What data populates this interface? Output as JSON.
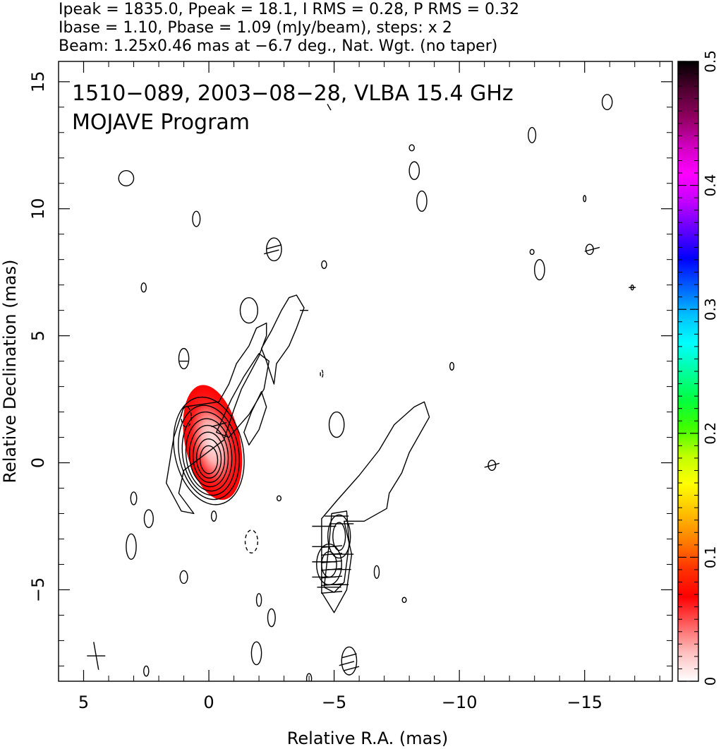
{
  "header": {
    "line1": "Ipeak = 1835.0, Ppeak = 18.1, I RMS = 0.28, P RMS = 0.32",
    "line2": "Ibase = 1.10, Pbase = 1.09 (mJy/beam), steps: x 2",
    "line3": "Beam: 1.25x0.46 mas at −6.7 deg., Nat. Wgt. (no taper)"
  },
  "chart_data": {
    "type": "contour",
    "title": "1510−089, 2003−08−28, VLBA 15.4 GHz",
    "subtitle": "MOJAVE Program",
    "xlabel": "Relative R.A. (mas)",
    "ylabel": "Relative Declination (mas)",
    "xlim": [
      6,
      -18.5
    ],
    "ylim": [
      -8.6,
      15.8
    ],
    "xticks": [
      5,
      0,
      -5,
      -10,
      -15
    ],
    "xtick_labels": [
      "5",
      "0",
      "−5",
      "−10",
      "−15"
    ],
    "yticks": [
      -5,
      0,
      5,
      10,
      15
    ],
    "ytick_labels": [
      "−5",
      "0",
      "5",
      "10",
      "15"
    ],
    "colorbar": {
      "range": [
        0,
        0.5
      ],
      "ticks": [
        0,
        0.1,
        0.2,
        0.3,
        0.4,
        0.5
      ],
      "tick_labels": [
        "0",
        "0.1",
        "0.2",
        "0.3",
        "0.4",
        "0.5"
      ]
    },
    "core": {
      "x": 0.0,
      "y": 0.2,
      "levels": [
        [
          0.5,
          1.0,
          -2
        ],
        [
          0.7,
          1.4,
          -2
        ],
        [
          0.9,
          1.8,
          -3
        ],
        [
          1.1,
          2.2,
          -4
        ],
        [
          1.3,
          2.6,
          -6
        ],
        [
          1.5,
          3.0,
          -8
        ],
        [
          1.7,
          3.4,
          -10
        ],
        [
          1.95,
          3.9,
          -12
        ]
      ]
    },
    "islands": [
      {
        "x": 3.3,
        "y": 11.2,
        "rx": 0.3,
        "ry": 0.3
      },
      {
        "x": 0.5,
        "y": 9.6,
        "rx": 0.15,
        "ry": 0.3
      },
      {
        "x": -2.6,
        "y": 8.4,
        "rx": 0.3,
        "ry": 0.45
      },
      {
        "x": -4.6,
        "y": 7.8,
        "rx": 0.1,
        "ry": 0.15
      },
      {
        "x": -8.1,
        "y": 12.4,
        "rx": 0.1,
        "ry": 0.12
      },
      {
        "x": -8.2,
        "y": 11.5,
        "rx": 0.2,
        "ry": 0.35
      },
      {
        "x": -8.5,
        "y": 10.3,
        "rx": 0.2,
        "ry": 0.4
      },
      {
        "x": -12.9,
        "y": 12.9,
        "rx": 0.15,
        "ry": 0.3
      },
      {
        "x": -12.9,
        "y": 8.3,
        "rx": 0.08,
        "ry": 0.1
      },
      {
        "x": -13.2,
        "y": 7.6,
        "rx": 0.2,
        "ry": 0.4
      },
      {
        "x": -15.2,
        "y": 8.4,
        "rx": 0.15,
        "ry": 0.2
      },
      {
        "x": -15.9,
        "y": 14.2,
        "rx": 0.2,
        "ry": 0.3
      },
      {
        "x": -15.0,
        "y": 10.4,
        "rx": 0.05,
        "ry": 0.12
      },
      {
        "x": -1.6,
        "y": 6.0,
        "rx": 0.35,
        "ry": 0.5
      },
      {
        "x": 1.0,
        "y": 4.1,
        "rx": 0.2,
        "ry": 0.4
      },
      {
        "x": -5.1,
        "y": 1.5,
        "rx": 0.3,
        "ry": 0.5
      },
      {
        "x": -9.7,
        "y": 3.8,
        "rx": 0.08,
        "ry": 0.15
      },
      {
        "x": -11.3,
        "y": -0.1,
        "rx": 0.15,
        "ry": 0.2
      },
      {
        "x": 3.0,
        "y": -1.4,
        "rx": 0.12,
        "ry": 0.25
      },
      {
        "x": 2.4,
        "y": -2.2,
        "rx": 0.18,
        "ry": 0.35
      },
      {
        "x": 3.1,
        "y": -3.3,
        "rx": 0.2,
        "ry": 0.5
      },
      {
        "x": 1.0,
        "y": -4.5,
        "rx": 0.15,
        "ry": 0.25
      },
      {
        "x": -0.2,
        "y": -2.1,
        "rx": 0.1,
        "ry": 0.2
      },
      {
        "x": -2.8,
        "y": -1.4,
        "rx": 0.08,
        "ry": 0.1
      },
      {
        "x": -2.0,
        "y": -5.4,
        "rx": 0.1,
        "ry": 0.25
      },
      {
        "x": -2.5,
        "y": -6.1,
        "rx": 0.15,
        "ry": 0.35
      },
      {
        "x": -1.9,
        "y": -7.5,
        "rx": 0.2,
        "ry": 0.45
      },
      {
        "x": -6.7,
        "y": -4.3,
        "rx": 0.1,
        "ry": 0.25
      },
      {
        "x": -7.8,
        "y": -5.4,
        "rx": 0.08,
        "ry": 0.1
      },
      {
        "x": -5.6,
        "y": -7.8,
        "rx": 0.3,
        "ry": 0.55
      },
      {
        "x": 2.5,
        "y": -8.2,
        "rx": 0.1,
        "ry": 0.2
      },
      {
        "x": -4.0,
        "y": -8.5,
        "rx": 0.1,
        "ry": 0.2
      },
      {
        "x": 2.6,
        "y": 6.9,
        "rx": 0.1,
        "ry": 0.18
      },
      {
        "x": -16.9,
        "y": 6.9,
        "rx": 0.05,
        "ry": 0.1
      }
    ],
    "dashed_islands": [
      {
        "x": 0.9,
        "y": 1.8,
        "rx": 0.2,
        "ry": 0.4
      },
      {
        "x": -1.7,
        "y": -3.1,
        "rx": 0.25,
        "ry": 0.45
      },
      {
        "x": -4.5,
        "y": 3.5,
        "rx": 0.05,
        "ry": 0.15
      }
    ],
    "jet_outer": [
      [
        0.6,
        -2.0
      ],
      [
        1.2,
        -1.2
      ],
      [
        1.0,
        -0.3
      ],
      [
        -0.6,
        0.9
      ],
      [
        -1.0,
        2.1
      ],
      [
        -1.3,
        2.9
      ],
      [
        -2.0,
        4.2
      ],
      [
        -2.3,
        5.0
      ],
      [
        -2.3,
        5.5
      ],
      [
        -1.9,
        5.3
      ],
      [
        -1.6,
        4.6
      ],
      [
        -1.1,
        3.9
      ],
      [
        -0.8,
        3.1
      ],
      [
        -0.4,
        2.4
      ],
      [
        1.0,
        2.2
      ],
      [
        1.4,
        1.0
      ],
      [
        1.7,
        -0.8
      ],
      [
        1.1,
        -1.9
      ]
    ],
    "jet_outer2": [
      [
        -2.1,
        4.5
      ],
      [
        -2.5,
        5.2
      ],
      [
        -2.9,
        6.0
      ],
      [
        -3.2,
        6.5
      ],
      [
        -3.5,
        6.6
      ],
      [
        -3.8,
        6.1
      ],
      [
        -3.5,
        5.3
      ],
      [
        -3.2,
        4.6
      ],
      [
        -2.7,
        3.9
      ],
      [
        -2.6,
        3.1
      ],
      [
        -2.3,
        4.0
      ]
    ],
    "jet_mid": [
      [
        -0.3,
        1.2
      ],
      [
        -0.9,
        2.5
      ],
      [
        -1.4,
        3.4
      ],
      [
        -2.0,
        4.3
      ],
      [
        -2.4,
        4.0
      ],
      [
        -2.2,
        2.9
      ],
      [
        -1.6,
        1.9
      ],
      [
        -0.8,
        1.0
      ]
    ],
    "jet_inner": [
      [
        -1.4,
        1.2
      ],
      [
        -1.7,
        2.0
      ],
      [
        -2.1,
        2.8
      ],
      [
        -2.3,
        2.2
      ],
      [
        -2.0,
        1.3
      ],
      [
        -1.6,
        0.7
      ]
    ],
    "south_outer": [
      [
        -4.5,
        -5.1
      ],
      [
        -4.5,
        -2.2
      ],
      [
        -5.1,
        -1.5
      ],
      [
        -6.0,
        -0.5
      ],
      [
        -6.8,
        0.5
      ],
      [
        -7.4,
        1.5
      ],
      [
        -8.2,
        2.2
      ],
      [
        -8.6,
        2.4
      ],
      [
        -8.8,
        1.8
      ],
      [
        -8.0,
        0.4
      ],
      [
        -7.7,
        -0.4
      ],
      [
        -7.2,
        -1.2
      ],
      [
        -7.1,
        -1.8
      ],
      [
        -6.2,
        -2.3
      ],
      [
        -5.4,
        -2.3
      ],
      [
        -5.7,
        -3.6
      ],
      [
        -5.5,
        -5.0
      ],
      [
        -5.0,
        -5.9
      ]
    ],
    "south_mid": [
      [
        -4.6,
        -4.9
      ],
      [
        -4.8,
        -3.2
      ],
      [
        -4.9,
        -2.0
      ],
      [
        -5.5,
        -1.9
      ],
      [
        -5.6,
        -3.2
      ],
      [
        -5.4,
        -4.7
      ],
      [
        -5.0,
        -5.1
      ]
    ],
    "south_lobes": [
      [
        -5.2,
        -2.9,
        0.25,
        0.55
      ],
      [
        -5.2,
        -2.9,
        0.45,
        0.85
      ],
      [
        -4.8,
        -4.0,
        0.3,
        0.5
      ],
      [
        -4.8,
        -4.0,
        0.5,
        0.8
      ]
    ],
    "color_gradient_stops": [
      "#ffffff",
      "#ffc0c0",
      "#ff6060",
      "#ff0000",
      "#ff3300",
      "#ff8000",
      "#ffc000",
      "#ffff00",
      "#c0ff00",
      "#40ff00",
      "#00ff40",
      "#00ffa0",
      "#00ffff",
      "#00c0ff",
      "#0060ff",
      "#0000ff",
      "#6000ff",
      "#c000ff",
      "#ff00ff",
      "#d000c0",
      "#900060",
      "#500030",
      "#000000"
    ]
  }
}
